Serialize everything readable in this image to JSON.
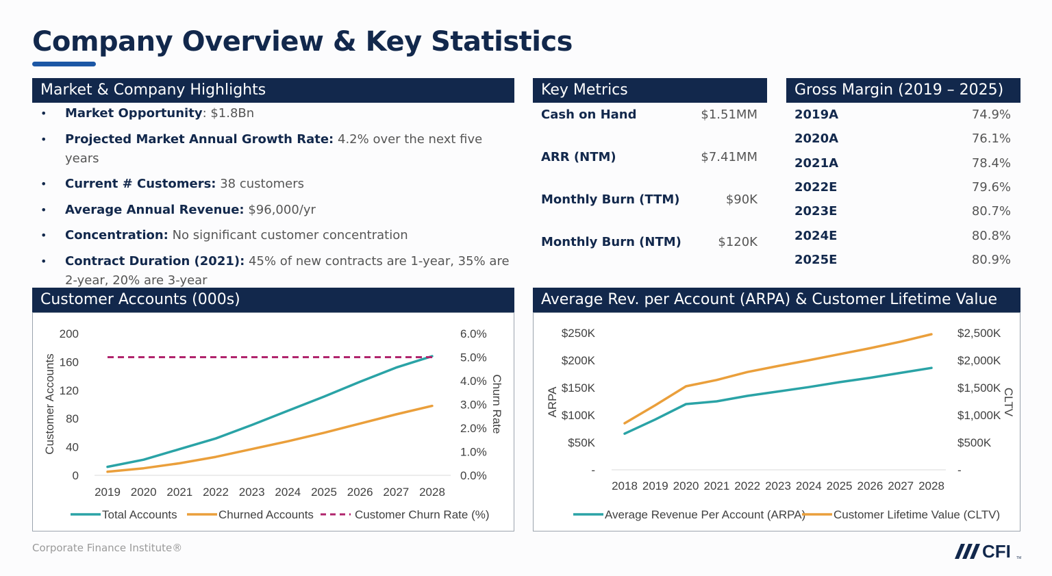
{
  "page": {
    "title": "Company Overview & Key Statistics",
    "footer": "Corporate Finance Institute®",
    "logo_text": "CFI",
    "logo_tm": "TM"
  },
  "highlights": {
    "header": "Market & Company Highlights",
    "items": [
      {
        "label": "Market Opportunity",
        "sep": ": ",
        "text": "$1.8Bn"
      },
      {
        "label": "Projected Market Annual Growth Rate:",
        "sep": " ",
        "text": "4.2% over the next five years"
      },
      {
        "label": "Current # Customers:",
        "sep": " ",
        "text": "38 customers"
      },
      {
        "label": "Average Annual Revenue:",
        "sep": " ",
        "text": "$96,000/yr"
      },
      {
        "label": "Concentration:",
        "sep": " ",
        "text": "No significant customer concentration"
      },
      {
        "label": "Contract Duration (2021):",
        "sep": " ",
        "text": "45% of new contracts are 1-year, 35% are 2-year, 20% are 3-year"
      }
    ]
  },
  "key_metrics": {
    "header": "Key Metrics",
    "rows": [
      {
        "label": "Cash on Hand",
        "value": "$1.51MM"
      },
      {
        "label": "ARR (NTM)",
        "value": "$7.41MM"
      },
      {
        "label": "Monthly Burn (TTM)",
        "value": "$90K"
      },
      {
        "label": "Monthly Burn (NTM)",
        "value": "$120K"
      }
    ]
  },
  "gross_margin": {
    "header": "Gross Margin (2019 – 2025)",
    "rows": [
      {
        "year": "2019A",
        "value": "74.9%"
      },
      {
        "year": "2020A",
        "value": "76.1%"
      },
      {
        "year": "2021A",
        "value": "78.4%"
      },
      {
        "year": "2022E",
        "value": "79.6%"
      },
      {
        "year": "2023E",
        "value": "80.7%"
      },
      {
        "year": "2024E",
        "value": "80.8%"
      },
      {
        "year": "2025E",
        "value": "80.9%"
      }
    ]
  },
  "colors": {
    "navy": "#12284c",
    "teal": "#2aa3a6",
    "orange": "#ea9f3b",
    "magenta": "#b0246c"
  },
  "chart_data": [
    {
      "type": "line",
      "title": "Customer Accounts (000s)",
      "categories": [
        "2019",
        "2020",
        "2021",
        "2022",
        "2023",
        "2024",
        "2025",
        "2026",
        "2027",
        "2028"
      ],
      "ylabel": "Customer Accounts",
      "ylim": [
        0,
        200
      ],
      "yticks": [
        "0",
        "40",
        "80",
        "120",
        "160",
        "200"
      ],
      "y2label": "Churn Rate",
      "y2lim": [
        0,
        0.06
      ],
      "y2ticks": [
        "0.0%",
        "1.0%",
        "2.0%",
        "3.0%",
        "4.0%",
        "5.0%",
        "6.0%"
      ],
      "series": [
        {
          "name": "Total Accounts",
          "axis": "left",
          "style": "solid",
          "color": "#2aa3a6",
          "values": [
            12,
            22,
            37,
            52,
            71,
            91,
            111,
            132,
            152,
            168
          ]
        },
        {
          "name": "Churned Accounts",
          "axis": "left",
          "style": "solid",
          "color": "#ea9f3b",
          "values": [
            5,
            10,
            17,
            26,
            37,
            48,
            60,
            73,
            86,
            98
          ]
        },
        {
          "name": "Customer Churn Rate (%)",
          "axis": "right",
          "style": "dashed",
          "color": "#b0246c",
          "values": [
            0.05,
            0.05,
            0.05,
            0.05,
            0.05,
            0.05,
            0.05,
            0.05,
            0.05,
            0.05
          ]
        }
      ],
      "legend": "bottom"
    },
    {
      "type": "line",
      "title": "Average Rev. per Account (ARPA) & Customer Lifetime Value (LTV)",
      "categories": [
        "2018",
        "2019",
        "2020",
        "2021",
        "2022",
        "2023",
        "2024",
        "2025",
        "2026",
        "2027",
        "2028"
      ],
      "ylabel": "ARPA",
      "ylim": [
        0,
        250
      ],
      "yticks": [
        "-",
        "$50K",
        "$100K",
        "$150K",
        "$200K",
        "$250K"
      ],
      "y2label": "CLTV",
      "y2lim": [
        0,
        2500
      ],
      "y2ticks": [
        "-",
        "$500K",
        "$1,000K",
        "$1,500K",
        "$2,000K",
        "$2,500K"
      ],
      "series": [
        {
          "name": "Average Revenue Per Account (ARPA)",
          "axis": "left",
          "style": "solid",
          "color": "#2aa3a6",
          "values": [
            66,
            92,
            120,
            125,
            135,
            143,
            151,
            160,
            168,
            177,
            186
          ]
        },
        {
          "name": "Customer Lifetime Value (CLTV)",
          "axis": "right",
          "style": "solid",
          "color": "#ea9f3b",
          "values": [
            850,
            1180,
            1525,
            1640,
            1785,
            1895,
            2000,
            2110,
            2220,
            2340,
            2475
          ]
        }
      ],
      "legend": "bottom"
    }
  ]
}
